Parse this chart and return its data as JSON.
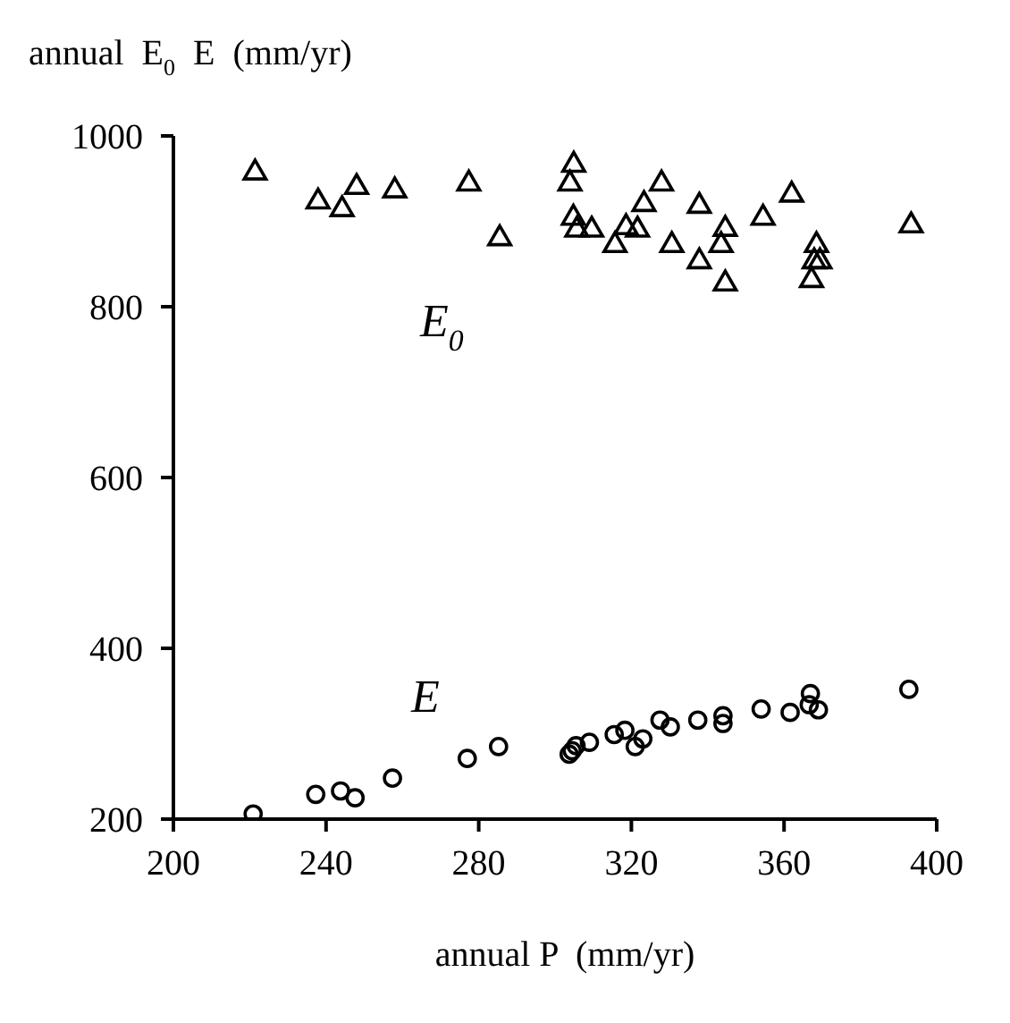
{
  "chart_data": {
    "type": "scatter",
    "ylabel": "annual  E$_{0}$  E  (mm/yr)",
    "xlabel": "annual P  (mm/yr)",
    "xlim": [
      200,
      400
    ],
    "xticks": [
      200,
      240,
      280,
      320,
      360,
      400
    ],
    "ylim": [
      200,
      1000
    ],
    "yticks": [
      200,
      400,
      600,
      800,
      1000
    ],
    "grid": false,
    "legend": false,
    "series": [
      {
        "name": "E$_{0}$",
        "marker": "triangle",
        "color": "#000000",
        "x": [
          221.4,
          237.9,
          244.2,
          248,
          258,
          277.4,
          285.5,
          304.9,
          303.9,
          304.8,
          305.7,
          309.6,
          315.7,
          318.6,
          321.6,
          323.3,
          327.9,
          330.6,
          337.8,
          337.8,
          344.6,
          343.5,
          344.6,
          354.5,
          362,
          368.5,
          367.9,
          369.4,
          367.2,
          393.3
        ],
        "values": [
          957,
          923,
          914,
          940,
          936,
          944,
          880,
          966,
          944,
          904,
          890,
          890,
          872,
          893,
          890,
          920,
          944,
          872,
          918,
          853,
          891,
          872,
          827,
          904,
          931,
          872,
          853,
          853,
          831,
          895
        ]
      },
      {
        "name": "E",
        "marker": "circle",
        "color": "#000000",
        "x": [
          220.9,
          237.3,
          243.8,
          247.6,
          257.4,
          277,
          285.2,
          303.7,
          304.5,
          305.5,
          309,
          315.5,
          318.3,
          321,
          323,
          327.5,
          330.2,
          337.4,
          344,
          344,
          354,
          361.6,
          366.9,
          366.6,
          369,
          392.7
        ],
        "values": [
          206,
          229,
          233,
          225,
          248,
          271,
          285,
          276,
          280,
          286,
          290,
          299,
          304,
          285,
          294,
          316,
          308,
          316,
          321,
          312,
          329,
          325,
          347,
          334,
          328,
          352
        ]
      }
    ]
  }
}
